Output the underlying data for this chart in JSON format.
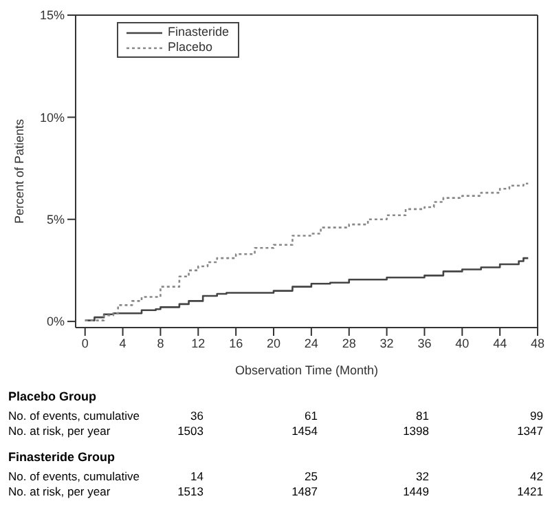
{
  "chart_data": {
    "type": "step",
    "xlabel": "Observation Time (Month)",
    "ylabel": "Percent of Patients",
    "xlim": [
      -1,
      48
    ],
    "xticks": [
      0,
      4,
      8,
      12,
      16,
      20,
      24,
      28,
      32,
      36,
      40,
      44,
      48
    ],
    "ylim": [
      -0.3,
      15
    ],
    "yticks": [
      {
        "value": 0,
        "label": "0%"
      },
      {
        "value": 5,
        "label": "5%"
      },
      {
        "value": 10,
        "label": "10%"
      },
      {
        "value": 15,
        "label": "15%"
      }
    ],
    "grid": false,
    "legend": "top left",
    "marker": "none",
    "series": [
      {
        "name": "Finasteride",
        "color": "#444444",
        "line_style": "solid",
        "x": [
          0,
          1,
          2,
          3,
          5,
          6,
          7.5,
          8,
          10,
          11,
          12.5,
          14,
          15,
          19,
          20,
          22,
          24,
          26,
          28,
          32,
          36,
          38,
          40,
          42,
          44,
          46,
          46.5,
          47
        ],
        "values": [
          0.05,
          0.2,
          0.35,
          0.4,
          0.4,
          0.55,
          0.6,
          0.7,
          0.85,
          1.0,
          1.25,
          1.35,
          1.4,
          1.4,
          1.5,
          1.7,
          1.85,
          1.9,
          2.05,
          2.15,
          2.25,
          2.45,
          2.55,
          2.65,
          2.8,
          2.95,
          3.1,
          3.1
        ]
      },
      {
        "name": "Placebo",
        "color": "#888888",
        "line_style": "dotted",
        "x": [
          0,
          2,
          3,
          3.5,
          5,
          6,
          8,
          10,
          11,
          12,
          13,
          14,
          16,
          18,
          20,
          22,
          24,
          25,
          28,
          30,
          32,
          34,
          36,
          37,
          38,
          40,
          42,
          44,
          45,
          46.5,
          47
        ],
        "values": [
          0.05,
          0.3,
          0.4,
          0.8,
          1.0,
          1.2,
          1.7,
          2.2,
          2.5,
          2.7,
          2.9,
          3.1,
          3.3,
          3.6,
          3.75,
          4.2,
          4.3,
          4.6,
          4.75,
          5.0,
          5.2,
          5.5,
          5.6,
          5.85,
          6.05,
          6.15,
          6.3,
          6.5,
          6.65,
          6.75,
          6.75
        ]
      }
    ],
    "annotations": [
      "Placebo Group",
      "No. of events, cumulative",
      "36",
      "61",
      "81",
      "99",
      "No. at risk, per year",
      "1503",
      "1454",
      "1398",
      "1347",
      "Finasteride Group",
      "No. of events, cumulative",
      "14",
      "25",
      "32",
      "42",
      "No. at risk, per year",
      "1513",
      "1487",
      "1449",
      "1421"
    ]
  }
}
